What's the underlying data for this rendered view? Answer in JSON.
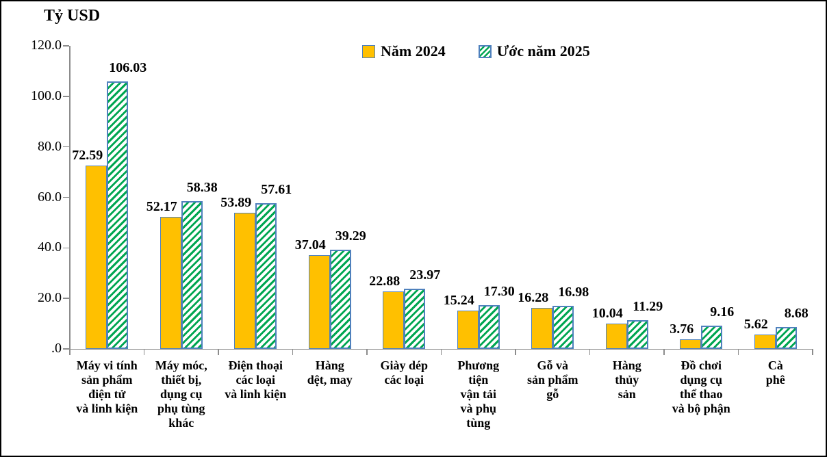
{
  "chart_data": {
    "type": "bar",
    "title": "Tỷ USD",
    "unit": "Tỷ USD",
    "categories": [
      "Máy vi tính\nsản phẩm\nđiện tử\nvà linh kiện",
      "Máy móc,\nthiết bị,\ndụng cụ\nphụ tùng\nkhác",
      "Điện thoại\ncác loại\nvà linh kiện",
      "Hàng\ndệt, may",
      "Giày dép\ncác loại",
      "Phương\ntiện\nvận tải\nvà phụ\ntùng",
      "Gỗ và\nsản phẩm\ngỗ",
      "Hàng\nthủy\nsản",
      "Đồ chơi\ndụng cụ\nthể thao\nvà bộ phận",
      "Cà\nphê"
    ],
    "series": [
      {
        "name": "Năm 2024",
        "values": [
          72.59,
          52.17,
          53.89,
          37.04,
          22.88,
          15.24,
          16.28,
          10.04,
          3.76,
          5.62
        ],
        "fill": "solid",
        "color": "#FFC000"
      },
      {
        "name": "Ước năm 2025",
        "values": [
          106.03,
          58.38,
          57.61,
          39.29,
          23.97,
          17.3,
          16.98,
          11.29,
          9.16,
          8.68
        ],
        "fill": "diagonal-hatch",
        "color": "#00A651"
      }
    ],
    "ylim": [
      0,
      120
    ],
    "y_ticks": {
      "values": [
        120,
        100,
        80,
        60,
        40,
        20,
        0
      ],
      "labels": [
        "120.0",
        "100.0",
        "80.0",
        "60.0",
        "40.0",
        "20.0",
        ".0"
      ]
    },
    "value_label_decimals": 2,
    "bar_border_color": "#4F81BD",
    "axis_color": "#8c8c8c",
    "grid": false,
    "legend_position": "top-center"
  }
}
